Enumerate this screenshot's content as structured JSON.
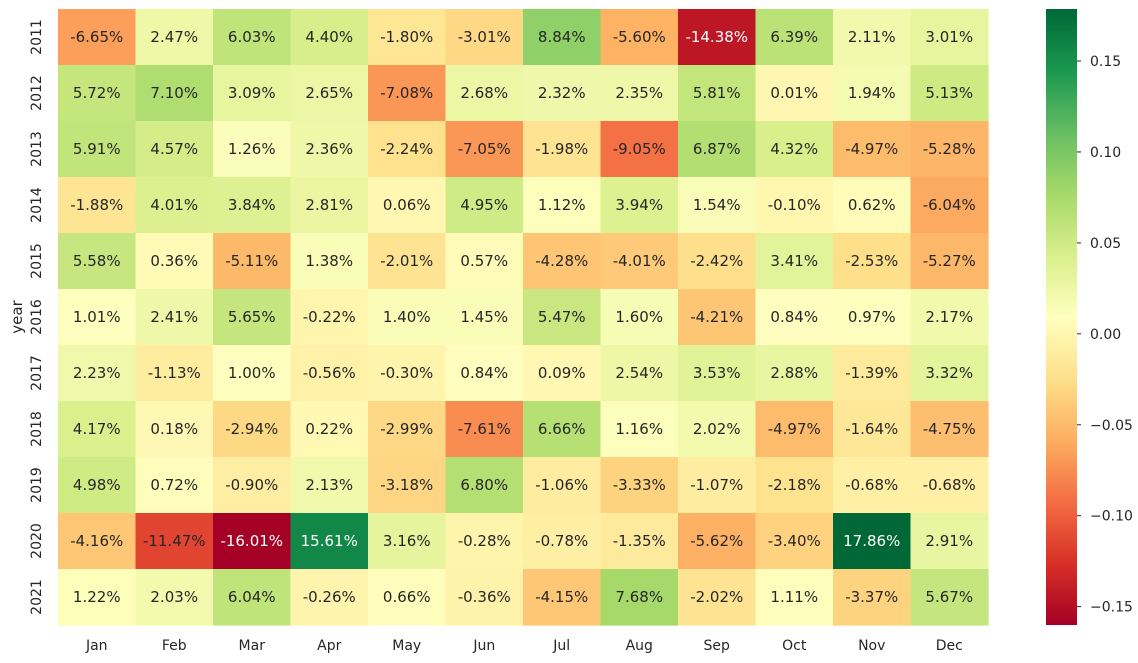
{
  "chart_data": {
    "type": "heatmap",
    "title": "",
    "xlabel": "",
    "ylabel": "year",
    "x_categories": [
      "Jan",
      "Feb",
      "Mar",
      "Apr",
      "May",
      "Jun",
      "Jul",
      "Aug",
      "Sep",
      "Oct",
      "Nov",
      "Dec"
    ],
    "y_categories": [
      "2011",
      "2012",
      "2013",
      "2014",
      "2015",
      "2016",
      "2017",
      "2018",
      "2019",
      "2020",
      "2021"
    ],
    "values": [
      [
        -0.0665,
        0.0247,
        0.0603,
        0.044,
        -0.018,
        -0.0301,
        0.0884,
        -0.056,
        -0.1438,
        0.0639,
        0.0211,
        0.0301
      ],
      [
        0.0572,
        0.071,
        0.0309,
        0.0265,
        -0.0708,
        0.0268,
        0.0232,
        0.0235,
        0.0581,
        0.0001,
        0.0194,
        0.0513
      ],
      [
        0.0591,
        0.0457,
        0.0126,
        0.0236,
        -0.0224,
        -0.0705,
        -0.0198,
        -0.0905,
        0.0687,
        0.0432,
        -0.0497,
        -0.0528
      ],
      [
        -0.0188,
        0.0401,
        0.0384,
        0.0281,
        0.0006,
        0.0495,
        0.0112,
        0.0394,
        0.0154,
        -0.001,
        0.0062,
        -0.0604
      ],
      [
        0.0558,
        0.0036,
        -0.0511,
        0.0138,
        -0.0201,
        0.0057,
        -0.0428,
        -0.0401,
        -0.0242,
        0.0341,
        -0.0253,
        -0.0527
      ],
      [
        0.0101,
        0.0241,
        0.0565,
        -0.0022,
        0.014,
        0.0145,
        0.0547,
        0.016,
        -0.0421,
        0.0084,
        0.0097,
        0.0217
      ],
      [
        0.0223,
        -0.0113,
        0.01,
        -0.0056,
        -0.003,
        0.0084,
        0.0009,
        0.0254,
        0.0353,
        0.0288,
        -0.0139,
        0.0332
      ],
      [
        0.0417,
        0.0018,
        -0.0294,
        0.0022,
        -0.0299,
        -0.0761,
        0.0666,
        0.0116,
        0.0202,
        -0.0497,
        -0.0164,
        -0.0475
      ],
      [
        0.0498,
        0.0072,
        -0.009,
        0.0213,
        -0.0318,
        0.068,
        -0.0106,
        -0.0333,
        -0.0107,
        -0.0218,
        -0.0068,
        -0.0068
      ],
      [
        -0.0416,
        -0.1147,
        -0.1601,
        0.1561,
        0.0316,
        -0.0028,
        -0.0078,
        -0.0135,
        -0.0562,
        -0.034,
        0.1786,
        0.0291
      ],
      [
        0.0122,
        0.0203,
        0.0604,
        -0.0026,
        0.0066,
        -0.0036,
        -0.0415,
        0.0768,
        -0.0202,
        0.0111,
        -0.0337,
        0.0567
      ]
    ],
    "cell_labels": [
      [
        "-6.65%",
        "2.47%",
        "6.03%",
        "4.40%",
        "-1.80%",
        "-3.01%",
        "8.84%",
        "-5.60%",
        "-14.38%",
        "6.39%",
        "2.11%",
        "3.01%"
      ],
      [
        "5.72%",
        "7.10%",
        "3.09%",
        "2.65%",
        "-7.08%",
        "2.68%",
        "2.32%",
        "2.35%",
        "5.81%",
        "0.01%",
        "1.94%",
        "5.13%"
      ],
      [
        "5.91%",
        "4.57%",
        "1.26%",
        "2.36%",
        "-2.24%",
        "-7.05%",
        "-1.98%",
        "-9.05%",
        "6.87%",
        "4.32%",
        "-4.97%",
        "-5.28%"
      ],
      [
        "-1.88%",
        "4.01%",
        "3.84%",
        "2.81%",
        "0.06%",
        "4.95%",
        "1.12%",
        "3.94%",
        "1.54%",
        "-0.10%",
        "0.62%",
        "-6.04%"
      ],
      [
        "5.58%",
        "0.36%",
        "-5.11%",
        "1.38%",
        "-2.01%",
        "0.57%",
        "-4.28%",
        "-4.01%",
        "-2.42%",
        "3.41%",
        "-2.53%",
        "-5.27%"
      ],
      [
        "1.01%",
        "2.41%",
        "5.65%",
        "-0.22%",
        "1.40%",
        "1.45%",
        "5.47%",
        "1.60%",
        "-4.21%",
        "0.84%",
        "0.97%",
        "2.17%"
      ],
      [
        "2.23%",
        "-1.13%",
        "1.00%",
        "-0.56%",
        "-0.30%",
        "0.84%",
        "0.09%",
        "2.54%",
        "3.53%",
        "2.88%",
        "-1.39%",
        "3.32%"
      ],
      [
        "4.17%",
        "0.18%",
        "-2.94%",
        "0.22%",
        "-2.99%",
        "-7.61%",
        "6.66%",
        "1.16%",
        "2.02%",
        "-4.97%",
        "-1.64%",
        "-4.75%"
      ],
      [
        "4.98%",
        "0.72%",
        "-0.90%",
        "2.13%",
        "-3.18%",
        "6.80%",
        "-1.06%",
        "-3.33%",
        "-1.07%",
        "-2.18%",
        "-0.68%",
        "-0.68%"
      ],
      [
        "-4.16%",
        "-11.47%",
        "-16.01%",
        "15.61%",
        "3.16%",
        "-0.28%",
        "-0.78%",
        "-1.35%",
        "-5.62%",
        "-3.40%",
        "17.86%",
        "2.91%"
      ],
      [
        "1.22%",
        "2.03%",
        "6.04%",
        "-0.26%",
        "0.66%",
        "-0.36%",
        "-4.15%",
        "7.68%",
        "-2.02%",
        "1.11%",
        "-3.37%",
        "5.67%"
      ]
    ],
    "colormap": "RdYlGn",
    "colormap_stops": [
      "#a50026",
      "#d73027",
      "#f46d43",
      "#fdae61",
      "#fee08b",
      "#ffffbf",
      "#d9ef8b",
      "#a6d96a",
      "#66bd63",
      "#1a9850",
      "#006837"
    ],
    "color_range": [
      -0.1601,
      0.1786
    ],
    "colorbar_ticks": [
      0.15,
      0.1,
      0.05,
      0.0,
      -0.05,
      -0.1,
      -0.15
    ],
    "colorbar_tick_labels": [
      "0.15",
      "0.10",
      "0.05",
      "0.00",
      "−0.05",
      "−0.10",
      "−0.15"
    ],
    "grid": false,
    "legend": "colorbar-right"
  }
}
